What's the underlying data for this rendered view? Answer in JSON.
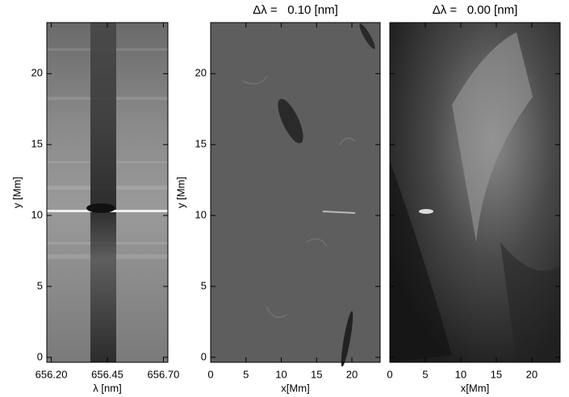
{
  "chart_data": [
    {
      "type": "image",
      "xlabel": "λ [nm]",
      "ylabel": "y [Mm]",
      "xlim": [
        656.18,
        656.72
      ],
      "ylim": [
        -0.35,
        23.6
      ],
      "xticks": [
        {
          "value": 656.2,
          "label": "656.20"
        },
        656.45,
        {
          "value": 656.7,
          "label": "656.70"
        }
      ],
      "yticks": [
        0,
        5,
        10,
        15,
        20
      ],
      "show_ytick_labels": true
    },
    {
      "type": "image",
      "title": "Δλ =   0.10 [nm]",
      "xlabel": "x[Mm]",
      "ylabel": "y [Mm]",
      "xlim": [
        0,
        24
      ],
      "ylim": [
        -0.35,
        23.6
      ],
      "xticks": [
        0,
        5,
        10,
        15,
        20
      ],
      "yticks": [
        0,
        5,
        10,
        15,
        20
      ],
      "show_ytick_labels": true
    },
    {
      "type": "image",
      "title": "Δλ =   0.00 [nm]",
      "xlabel": "x[Mm]",
      "xlim": [
        0,
        24
      ],
      "ylim": [
        -0.35,
        23.6
      ],
      "xticks": [
        0,
        5,
        10,
        15,
        20
      ],
      "yticks": [
        0,
        5,
        10,
        15,
        20
      ],
      "show_ytick_labels": false
    }
  ]
}
